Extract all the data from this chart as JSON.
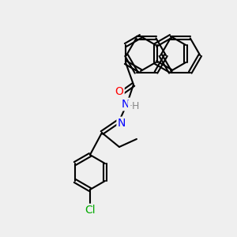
{
  "background_color": "#efefef",
  "bond_color": "#000000",
  "bond_lw": 1.5,
  "atom_colors": {
    "O": "#ff0000",
    "N": "#0000ff",
    "Cl": "#00aa00",
    "H": "#888888",
    "C": "#000000"
  },
  "font_size": 9
}
